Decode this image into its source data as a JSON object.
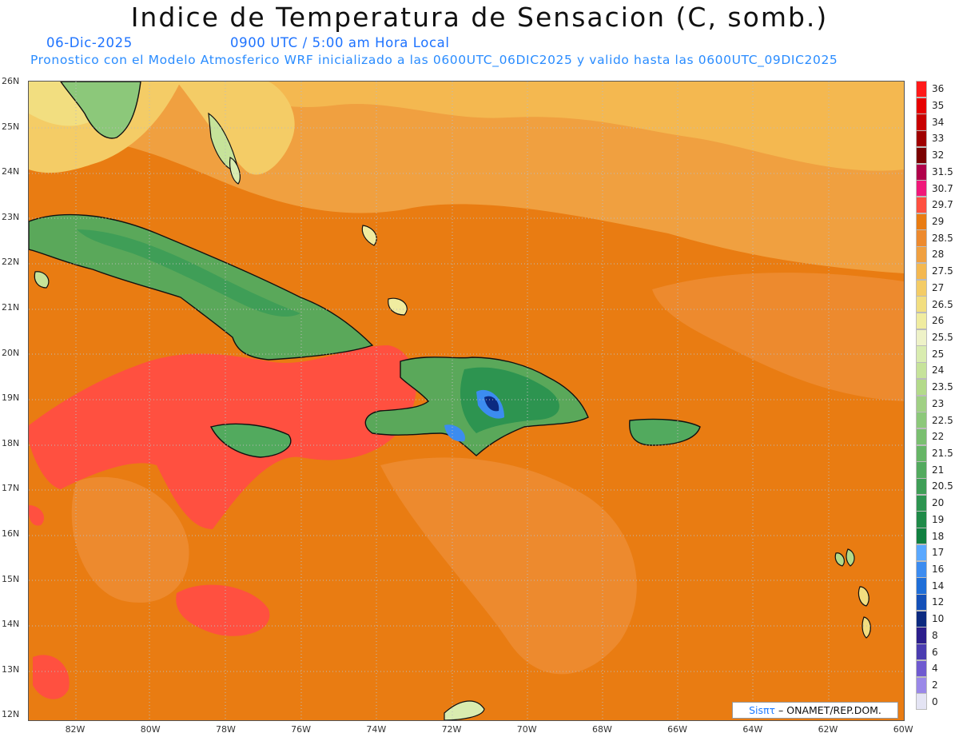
{
  "title": "Indice de Temperatura de Sensacion (C, somb.)",
  "date_label": "06-Dic-2025",
  "time_label": "0900 UTC / 5:00 am Hora Local",
  "forecast_info": "Pronostico con el Modelo Atmosferico WRF inicializado a las 0600UTC_06DIC2025 y valido hasta las  0600UTC_09DIC2025",
  "credit": {
    "brand": "Sisπτ",
    "text": "– ONAMET/REP.DOM."
  },
  "lat_labels": [
    "26N",
    "25N",
    "24N",
    "23N",
    "22N",
    "21N",
    "20N",
    "19N",
    "18N",
    "17N",
    "16N",
    "15N",
    "14N",
    "13N",
    "12N"
  ],
  "lon_labels": [
    "82W",
    "80W",
    "78W",
    "76W",
    "74W",
    "72W",
    "70W",
    "68W",
    "66W",
    "64W",
    "62W",
    "60W"
  ],
  "colorbar": {
    "labels": [
      "36",
      "35",
      "34",
      "33",
      "32",
      "31.5",
      "30.7",
      "29.7",
      "29",
      "28.5",
      "28",
      "27.5",
      "27",
      "26.5",
      "26",
      "25.5",
      "25",
      "24",
      "23.5",
      "23",
      "22.5",
      "22",
      "21.5",
      "21",
      "20.5",
      "20",
      "19",
      "18",
      "17",
      "16",
      "14",
      "12",
      "10",
      "8",
      "6",
      "4",
      "2",
      "0"
    ],
    "colors": [
      "#ff1a1a",
      "#e60000",
      "#c80000",
      "#a00000",
      "#7a0000",
      "#b0004a",
      "#f0187a",
      "#ff5040",
      "#e97c12",
      "#ed8a2e",
      "#f0a040",
      "#f4b850",
      "#f4cc66",
      "#f2de80",
      "#f0eca0",
      "#eef2c8",
      "#d9ecb0",
      "#c6e39a",
      "#b3da8a",
      "#a0d084",
      "#8cc87a",
      "#7abf70",
      "#66b566",
      "#52aa5e",
      "#3f9e57",
      "#2d9450",
      "#1f8a48",
      "#118040",
      "#5aa8ff",
      "#3c8cf0",
      "#1f6ed8",
      "#1450b8",
      "#0c2a80",
      "#2c1e8c",
      "#4a3cb0",
      "#6f5ad0",
      "#9a88e8",
      "#e4e4f4"
    ]
  }
}
